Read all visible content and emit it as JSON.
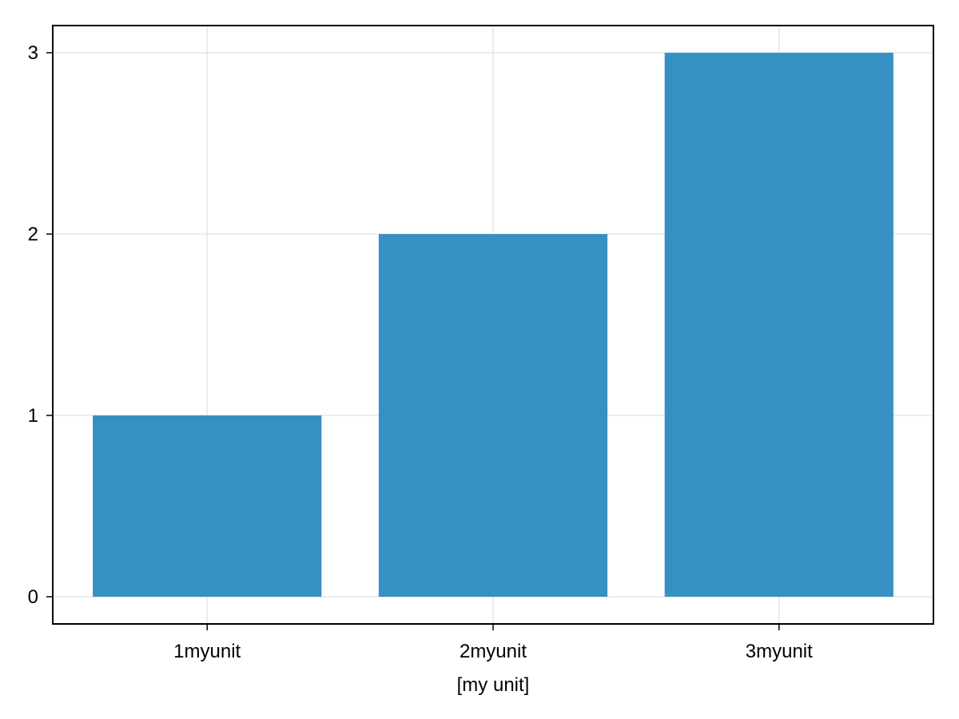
{
  "chart_data": {
    "type": "bar",
    "categories": [
      "1myunit",
      "2myunit",
      "3myunit"
    ],
    "x": [
      1,
      2,
      3
    ],
    "values": [
      1,
      2,
      3
    ],
    "xlabel": "[my unit]",
    "ylabel": "",
    "title": "",
    "ylim": [
      -0.15,
      3.15
    ],
    "xlim": [
      0.46,
      3.54
    ],
    "yticks": [
      "0",
      "1",
      "2",
      "3"
    ],
    "grid": true,
    "colors": {
      "bar": "#3790c3",
      "grid": "#e6e6e6",
      "frame": "#000000"
    }
  }
}
